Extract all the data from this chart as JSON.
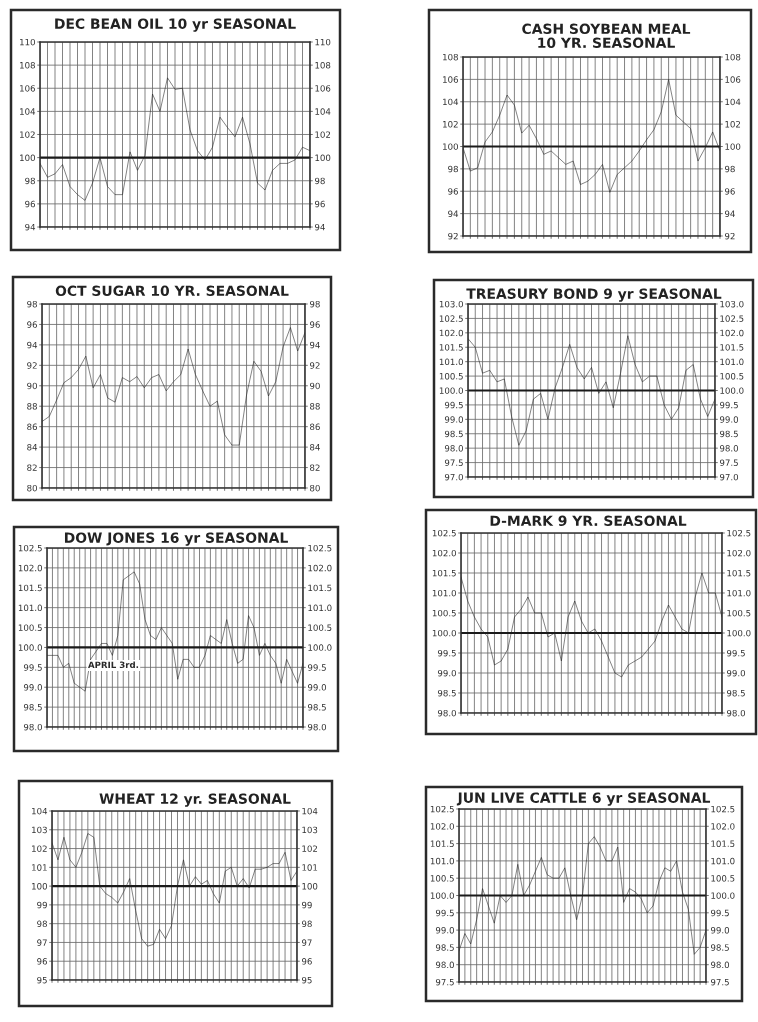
{
  "chart_data": [
    {
      "type": "line",
      "title": "DEC BEAN OIL 10 yr SEASONAL",
      "categories": [
        null,
        null,
        null,
        null,
        null,
        null,
        null,
        null,
        null,
        null,
        null,
        null,
        null,
        null,
        null,
        null,
        null,
        null,
        null,
        null,
        null,
        null,
        null,
        null,
        null,
        null,
        null,
        null,
        null,
        null,
        null,
        null,
        null,
        null,
        null,
        null,
        null
      ],
      "series": [
        {
          "color": "#1e1e1e",
          "values": [
            99.5,
            98.3,
            98.6,
            99.4,
            97.5,
            96.8,
            96.3,
            97.8,
            100.0,
            97.5,
            96.8,
            96.8,
            100.5,
            98.9,
            100.2,
            105.5,
            104.0,
            106.9,
            105.9,
            106.0,
            102.4,
            100.6,
            99.8,
            100.9,
            103.5,
            102.6,
            101.8,
            103.5,
            101.2,
            97.8,
            97.2,
            98.9,
            99.5,
            99.5,
            99.8,
            100.9,
            100.6
          ]
        }
      ],
      "ylim": [
        94,
        110
      ],
      "yticks": [
        94,
        96,
        98,
        100,
        102,
        104,
        106,
        108,
        110
      ],
      "y2lim": [
        94,
        110
      ],
      "y2ticks": [
        94,
        96,
        98,
        100,
        102,
        104,
        106,
        108,
        110
      ],
      "ref_lines": [
        {
          "axis": "y",
          "value": 100,
          "color": "#1a1a1a"
        }
      ],
      "grid": true,
      "tick_labels": "y"
    },
    {
      "type": "line",
      "title": "CASH SOYBEAN MEAL\n10 YR. SEASONAL",
      "categories": [
        null,
        null,
        null,
        null,
        null,
        null,
        null,
        null,
        null,
        null,
        null,
        null,
        null,
        null,
        null,
        null,
        null,
        null,
        null,
        null,
        null,
        null,
        null,
        null,
        null,
        null,
        null,
        null,
        null,
        null,
        null,
        null,
        null,
        null,
        null,
        null
      ],
      "series": [
        {
          "color": "#1e1e1e",
          "values": [
            99.9,
            97.8,
            98.1,
            100.4,
            101.3,
            102.8,
            104.6,
            103.7,
            101.2,
            101.9,
            100.7,
            99.3,
            99.6,
            99.0,
            98.4,
            98.7,
            96.6,
            96.9,
            97.5,
            98.4,
            95.9,
            97.5,
            98.1,
            98.7,
            99.6,
            100.6,
            101.5,
            103.1,
            106.0,
            102.8,
            102.2,
            101.6,
            98.7,
            99.9,
            101.3,
            99.6
          ]
        }
      ],
      "ylim": [
        92,
        108
      ],
      "yticks": [
        92,
        94,
        96,
        98,
        100,
        102,
        104,
        106,
        108
      ],
      "y2lim": [
        92,
        108
      ],
      "y2ticks": [
        92,
        94,
        96,
        98,
        100,
        102,
        104,
        106,
        108
      ],
      "ref_lines": [
        {
          "axis": "y",
          "value": 100,
          "color": "#1a1a1a"
        }
      ],
      "grid": true,
      "tick_labels": "y"
    },
    {
      "type": "line",
      "title": "OCT SUGAR 10 YR. SEASONAL",
      "categories": [
        null,
        null,
        null,
        null,
        null,
        null,
        null,
        null,
        null,
        null,
        null,
        null,
        null,
        null,
        null,
        null,
        null,
        null,
        null,
        null,
        null,
        null,
        null,
        null,
        null,
        null,
        null,
        null,
        null,
        null,
        null,
        null,
        null,
        null,
        null,
        null,
        null
      ],
      "series": [
        {
          "color": "#1e1e1e",
          "values": [
            86.5,
            87.0,
            88.6,
            90.3,
            90.8,
            91.6,
            92.9,
            89.8,
            91.1,
            88.8,
            88.4,
            90.8,
            90.4,
            90.9,
            89.8,
            90.8,
            91.1,
            89.5,
            90.4,
            91.1,
            93.6,
            91.1,
            89.5,
            88.0,
            88.5,
            85.2,
            84.2,
            84.2,
            89.1,
            92.4,
            91.4,
            89.0,
            90.4,
            93.8,
            95.7,
            93.4,
            95.2
          ]
        }
      ],
      "ylim": [
        80,
        98
      ],
      "yticks": [
        80,
        82,
        84,
        86,
        88,
        90,
        92,
        94,
        96,
        98
      ],
      "y2lim": [
        80,
        98
      ],
      "y2ticks": [
        80,
        82,
        84,
        86,
        88,
        90,
        92,
        94,
        96,
        98
      ],
      "grid": true,
      "tick_labels": "y"
    },
    {
      "type": "line",
      "title": "TREASURY BOND 9 yr SEASONAL",
      "categories": [
        null,
        null,
        null,
        null,
        null,
        null,
        null,
        null,
        null,
        null,
        null,
        null,
        null,
        null,
        null,
        null,
        null,
        null,
        null,
        null,
        null,
        null,
        null,
        null,
        null,
        null,
        null,
        null,
        null,
        null,
        null,
        null,
        null,
        null,
        null
      ],
      "series": [
        {
          "color": "#1e1e1e",
          "values": [
            101.8,
            101.5,
            100.6,
            100.7,
            100.3,
            100.4,
            99.1,
            98.1,
            98.6,
            99.7,
            99.9,
            99.0,
            100.1,
            100.8,
            101.6,
            100.8,
            100.4,
            100.8,
            99.9,
            100.3,
            99.4,
            100.6,
            101.9,
            100.9,
            100.3,
            100.5,
            100.5,
            99.5,
            99.0,
            99.4,
            100.7,
            100.9,
            99.7,
            99.1,
            99.7
          ]
        }
      ],
      "ylim": [
        97,
        103
      ],
      "yticks": [
        {
          "value": 97,
          "label": "97.0"
        },
        97.5,
        {
          "value": 98,
          "label": "98.0"
        },
        98.5,
        {
          "value": 99,
          "label": "99.0"
        },
        99.5,
        {
          "value": 100,
          "label": "100.0"
        },
        100.5,
        {
          "value": 101,
          "label": "101.0"
        },
        101.5,
        {
          "value": 102,
          "label": "102.0"
        },
        102.5,
        {
          "value": 103,
          "label": "103.0"
        }
      ],
      "y2lim": [
        97,
        103
      ],
      "y2ticks": [
        {
          "value": 97,
          "label": "97.0"
        },
        97.5,
        {
          "value": 98,
          "label": "98.0"
        },
        98.5,
        {
          "value": 99,
          "label": "99.0"
        },
        99.5,
        {
          "value": 100,
          "label": "100.0"
        },
        100.5,
        {
          "value": 101,
          "label": "101.0"
        },
        101.5,
        {
          "value": 102,
          "label": "102.0"
        },
        102.5,
        {
          "value": 103,
          "label": "103.0"
        }
      ],
      "ref_lines": [
        {
          "axis": "y",
          "value": 100,
          "color": "#1a1a1a"
        }
      ],
      "grid": true,
      "tick_labels": "y"
    },
    {
      "type": "line",
      "title": "DOW JONES 16 yr SEASONAL",
      "categories": [
        null,
        null,
        null,
        null,
        null,
        null,
        null,
        null,
        null,
        null,
        null,
        null,
        null,
        null,
        null,
        null,
        null,
        null,
        null,
        null,
        null,
        null,
        null,
        null,
        null,
        null,
        null,
        null,
        null,
        null,
        null,
        null,
        null,
        null,
        null,
        null,
        null,
        null,
        null,
        null,
        null,
        null,
        null,
        null,
        null,
        null,
        null,
        null
      ],
      "series": [
        {
          "color": "#1e1e1e",
          "values": [
            99.8,
            99.8,
            99.8,
            99.5,
            99.6,
            99.1,
            99.0,
            98.9,
            99.7,
            99.9,
            100.1,
            100.1,
            99.8,
            100.3,
            101.7,
            101.8,
            101.9,
            101.6,
            100.7,
            100.3,
            100.2,
            100.5,
            100.3,
            100.1,
            99.2,
            99.7,
            99.7,
            99.5,
            99.5,
            99.8,
            100.3,
            100.2,
            100.1,
            100.7,
            100.1,
            99.6,
            99.7,
            100.8,
            100.5,
            99.8,
            100.1,
            99.8,
            99.6,
            99.1,
            99.7,
            99.4,
            99.1,
            99.6
          ]
        }
      ],
      "ylim": [
        98,
        102.5
      ],
      "yticks": [
        {
          "value": 98,
          "label": "98.0"
        },
        98.5,
        {
          "value": 99,
          "label": "99.0"
        },
        99.5,
        {
          "value": 100,
          "label": "100.0"
        },
        100.5,
        {
          "value": 101,
          "label": "101.0"
        },
        101.5,
        {
          "value": 102,
          "label": "102.0"
        },
        102.5
      ],
      "y2lim": [
        98,
        102.5
      ],
      "y2ticks": [
        {
          "value": 98,
          "label": "98.0"
        },
        98.5,
        {
          "value": 99,
          "label": "99.0"
        },
        99.5,
        {
          "value": 100,
          "label": "100.0"
        },
        100.5,
        {
          "value": 101,
          "label": "101.0"
        },
        101.5,
        {
          "value": 102,
          "label": "102.0"
        },
        102.5
      ],
      "ref_lines": [
        {
          "axis": "y",
          "value": 100,
          "color": "#1a1a1a"
        }
      ],
      "annotations": [
        "APRIL 3rd."
      ],
      "grid": true,
      "tick_labels": "y"
    },
    {
      "type": "line",
      "title": "D-MARK 9 YR. SEASONAL",
      "categories": [
        null,
        null,
        null,
        null,
        null,
        null,
        null,
        null,
        null,
        null,
        null,
        null,
        null,
        null,
        null,
        null,
        null,
        null,
        null,
        null,
        null,
        null,
        null,
        null,
        null,
        null,
        null,
        null,
        null,
        null,
        null,
        null,
        null,
        null,
        null,
        null,
        null,
        null,
        null,
        null
      ],
      "series": [
        {
          "color": "#1e1e1e",
          "values": [
            101.4,
            100.8,
            100.4,
            100.1,
            99.9,
            99.2,
            99.3,
            99.6,
            100.4,
            100.6,
            100.9,
            100.5,
            100.5,
            99.9,
            100.0,
            99.3,
            100.4,
            100.8,
            100.3,
            100.0,
            100.1,
            99.8,
            99.4,
            99.0,
            98.9,
            99.2,
            99.3,
            99.4,
            99.6,
            99.8,
            100.3,
            100.7,
            100.4,
            100.1,
            100.0,
            100.9,
            101.5,
            101.0,
            101.0,
            100.4
          ]
        }
      ],
      "ylim": [
        98,
        102.5
      ],
      "yticks": [
        {
          "value": 98,
          "label": "98.0"
        },
        98.5,
        {
          "value": 99,
          "label": "99.0"
        },
        99.5,
        {
          "value": 100,
          "label": "100.0"
        },
        100.5,
        {
          "value": 101,
          "label": "101.0"
        },
        101.5,
        {
          "value": 102,
          "label": "102.0"
        },
        102.5
      ],
      "y2lim": [
        98,
        102.5
      ],
      "y2ticks": [
        {
          "value": 98,
          "label": "98.0"
        },
        98.5,
        {
          "value": 99,
          "label": "99.0"
        },
        99.5,
        {
          "value": 100,
          "label": "100.0"
        },
        100.5,
        {
          "value": 101,
          "label": "101.0"
        },
        101.5,
        {
          "value": 102,
          "label": "102.0"
        },
        102.5
      ],
      "ref_lines": [
        {
          "axis": "y",
          "value": 100,
          "color": "#1a1a1a"
        }
      ],
      "grid": true,
      "tick_labels": "y"
    },
    {
      "type": "line",
      "title": "WHEAT 12 yr. SEASONAL",
      "categories": [
        null,
        null,
        null,
        null,
        null,
        null,
        null,
        null,
        null,
        null,
        null,
        null,
        null,
        null,
        null,
        null,
        null,
        null,
        null,
        null,
        null,
        null,
        null,
        null,
        null,
        null,
        null,
        null,
        null,
        null,
        null,
        null,
        null,
        null,
        null,
        null,
        null,
        null,
        null,
        null,
        null,
        null
      ],
      "series": [
        {
          "color": "#1e1e1e",
          "values": [
            102.3,
            101.4,
            102.6,
            101.4,
            101.0,
            101.8,
            102.8,
            102.6,
            100.0,
            99.6,
            99.4,
            99.1,
            99.7,
            100.4,
            98.7,
            97.2,
            96.8,
            96.9,
            97.7,
            97.2,
            97.9,
            100.0,
            101.4,
            100.0,
            100.5,
            100.1,
            100.3,
            99.6,
            99.1,
            100.8,
            101.0,
            100.0,
            100.4,
            99.9,
            100.9,
            100.9,
            101.0,
            101.2,
            101.2,
            101.8,
            100.3,
            100.8
          ]
        }
      ],
      "ylim": [
        95,
        104
      ],
      "yticks": [
        95,
        96,
        97,
        98,
        99,
        100,
        101,
        102,
        103,
        104
      ],
      "y2lim": [
        95,
        104
      ],
      "y2ticks": [
        95,
        96,
        97,
        98,
        99,
        100,
        101,
        102,
        103,
        104
      ],
      "ref_lines": [
        {
          "axis": "y",
          "value": 100,
          "color": "#1a1a1a"
        }
      ],
      "grid": true,
      "tick_labels": "y"
    },
    {
      "type": "line",
      "title": "JUN LIVE CATTLE 6 yr SEASONAL",
      "categories": [
        null,
        null,
        null,
        null,
        null,
        null,
        null,
        null,
        null,
        null,
        null,
        null,
        null,
        null,
        null,
        null,
        null,
        null,
        null,
        null,
        null,
        null,
        null,
        null,
        null,
        null,
        null,
        null,
        null,
        null,
        null,
        null,
        null,
        null,
        null,
        null,
        null,
        null,
        null,
        null,
        null,
        null,
        null
      ],
      "series": [
        {
          "color": "#1e1e1e",
          "values": [
            98.4,
            98.9,
            98.6,
            99.3,
            100.2,
            99.7,
            99.2,
            100.0,
            99.8,
            100.0,
            100.9,
            100.0,
            100.3,
            100.7,
            101.1,
            100.6,
            100.5,
            100.5,
            100.8,
            100.0,
            99.3,
            100.0,
            101.5,
            101.7,
            101.4,
            101.0,
            101.0,
            101.4,
            99.8,
            100.2,
            100.1,
            99.9,
            99.5,
            99.7,
            100.4,
            100.8,
            100.7,
            101.0,
            100.1,
            99.6,
            98.3,
            98.5,
            99.0
          ]
        }
      ],
      "ylim": [
        97.5,
        102.5
      ],
      "yticks": [
        97.5,
        {
          "value": 98,
          "label": "98.0"
        },
        98.5,
        {
          "value": 99,
          "label": "99.0"
        },
        99.5,
        {
          "value": 100,
          "label": "100.0"
        },
        100.5,
        {
          "value": 101,
          "label": "101.0"
        },
        101.5,
        {
          "value": 102,
          "label": "102.0"
        },
        102.5
      ],
      "y2lim": [
        97.5,
        102.5
      ],
      "y2ticks": [
        97.5,
        {
          "value": 98,
          "label": "98.0"
        },
        98.5,
        {
          "value": 99,
          "label": "99.0"
        },
        99.5,
        {
          "value": 100,
          "label": "100.0"
        },
        100.5,
        {
          "value": 101,
          "label": "101.0"
        },
        101.5,
        {
          "value": 102,
          "label": "102.0"
        },
        102.5
      ],
      "ref_lines": [
        {
          "axis": "y",
          "value": 100,
          "color": "#1a1a1a"
        }
      ],
      "grid": true,
      "tick_labels": "y"
    }
  ]
}
